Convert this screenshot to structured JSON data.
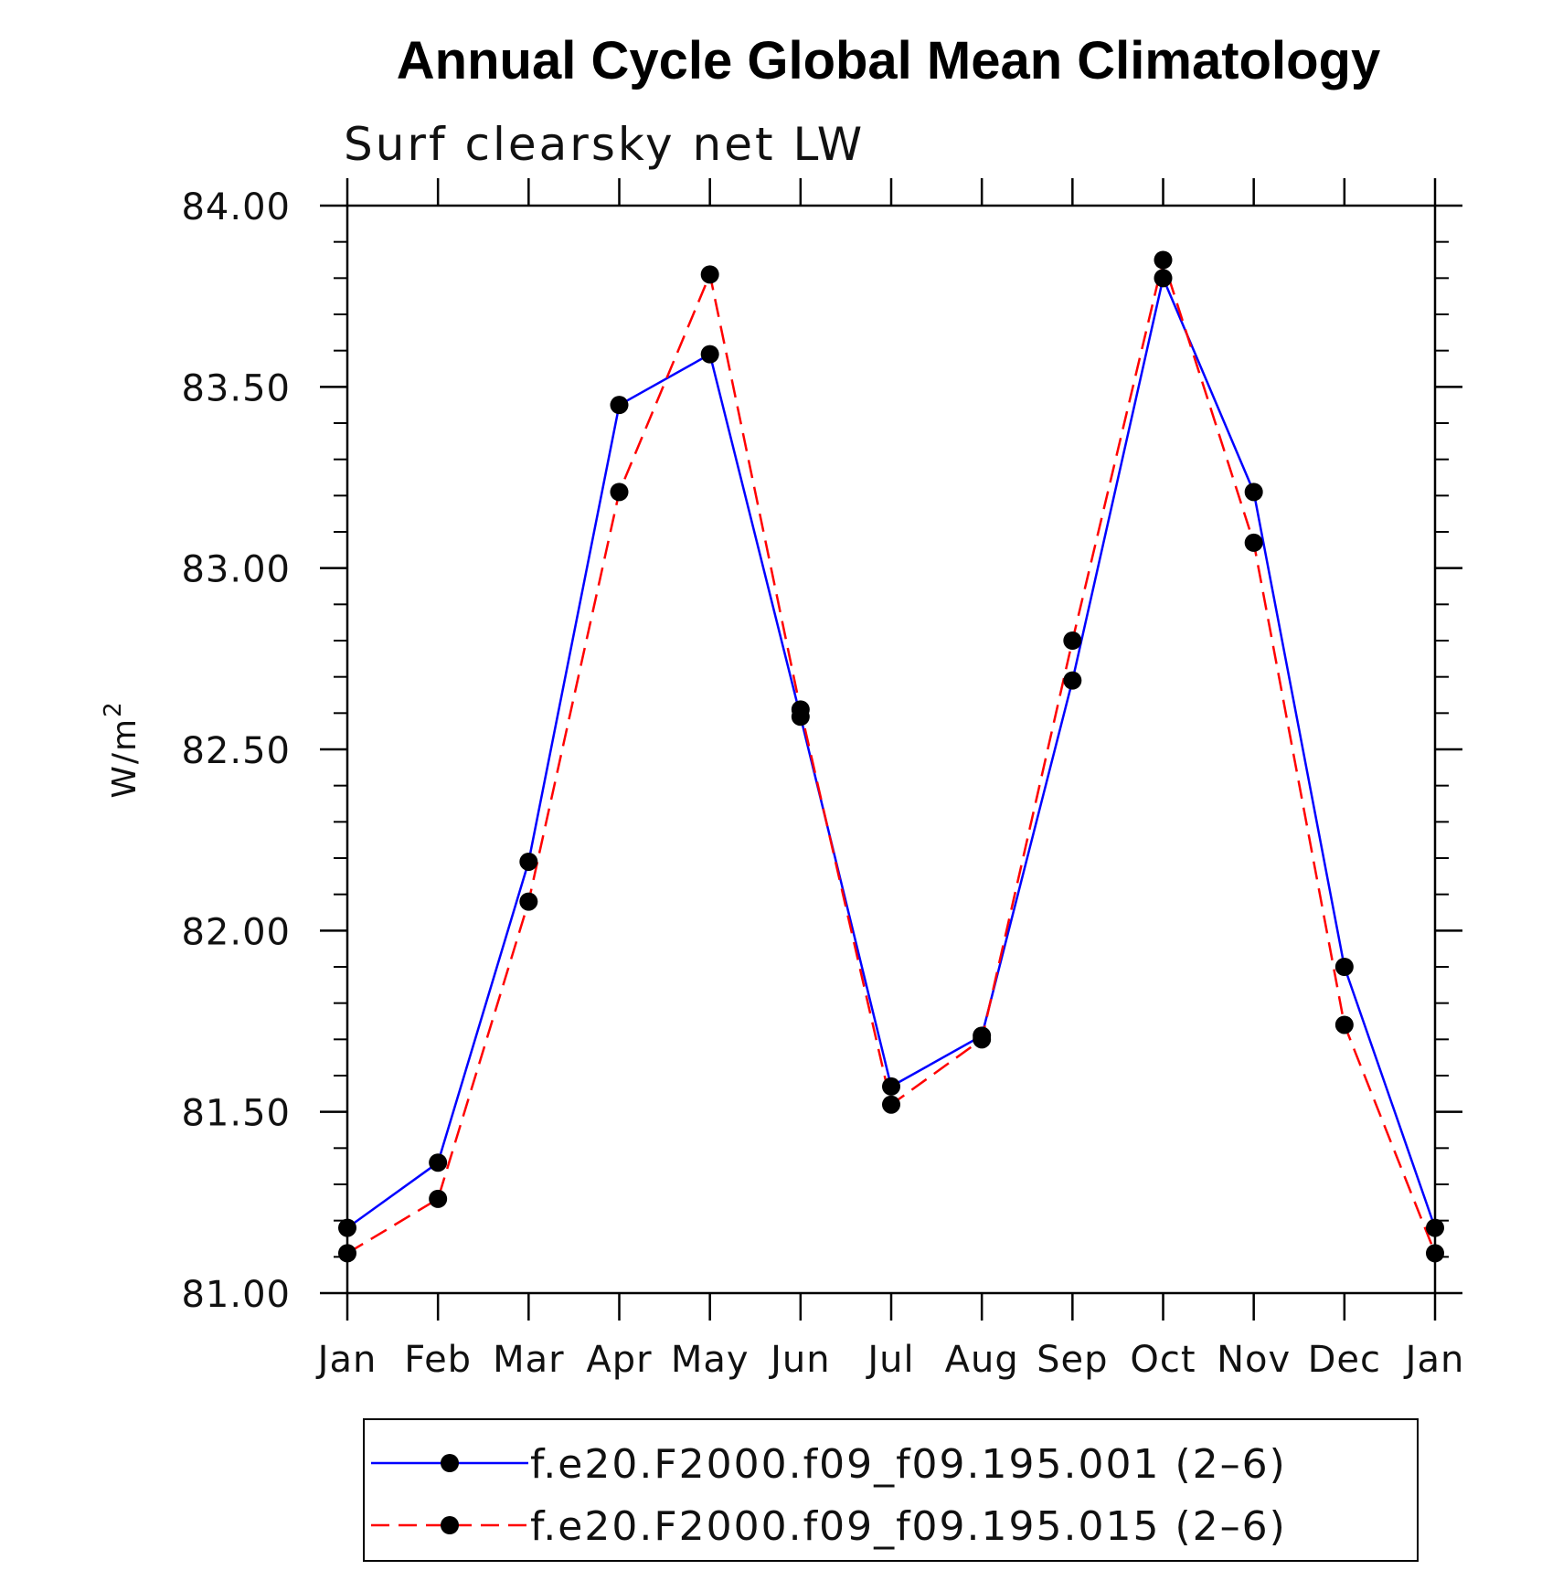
{
  "chart_data": {
    "type": "line",
    "title": "Annual Cycle Global Mean Climatology",
    "subtitle": "Surf clearsky net LW",
    "xlabel": "",
    "ylabel": "W/m",
    "ylabel_superscript": "2",
    "categories": [
      "Jan",
      "Feb",
      "Mar",
      "Apr",
      "May",
      "Jun",
      "Jul",
      "Aug",
      "Sep",
      "Oct",
      "Nov",
      "Dec",
      "Jan"
    ],
    "ylim": [
      81.0,
      84.0
    ],
    "yticks": [
      81.0,
      81.5,
      82.0,
      82.5,
      83.0,
      83.5,
      84.0
    ],
    "ytick_labels": [
      "81.00",
      "81.50",
      "82.00",
      "82.50",
      "83.00",
      "83.50",
      "84.00"
    ],
    "yminor_step": 0.1,
    "grid": false,
    "legend_position": "bottom",
    "series": [
      {
        "name": "f.e20.F2000.f09_f09.195.001 (2–6)",
        "color": "#0000ff",
        "style": "solid",
        "marker_color": "#000000",
        "values": [
          81.18,
          81.36,
          82.19,
          83.45,
          83.59,
          82.59,
          81.57,
          81.71,
          82.69,
          83.8,
          83.21,
          81.9,
          81.18
        ]
      },
      {
        "name": "f.e20.F2000.f09_f09.195.015 (2–6)",
        "color": "#ff0000",
        "style": "dashed",
        "marker_color": "#000000",
        "values": [
          81.11,
          81.26,
          82.08,
          83.21,
          83.81,
          82.61,
          81.52,
          81.7,
          82.8,
          83.85,
          83.07,
          81.74,
          81.11
        ]
      }
    ]
  }
}
